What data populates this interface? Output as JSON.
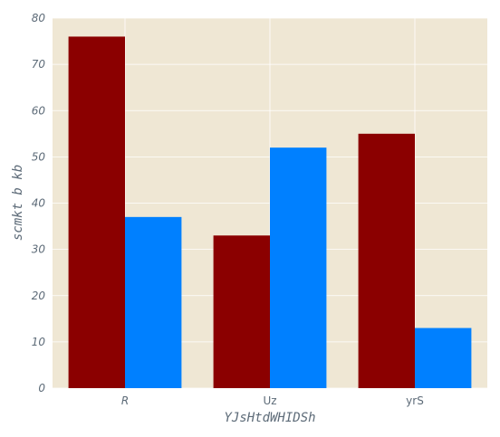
{
  "chart_data": {
    "type": "bar",
    "categories": [
      "R",
      "Uz",
      "yrS"
    ],
    "series": [
      {
        "values": [
          76,
          33,
          55
        ],
        "color": "#8b0000"
      },
      {
        "values": [
          37,
          52,
          13
        ],
        "color": "#0080ff"
      }
    ],
    "xlabel": "YJsHtdWHIDSh",
    "ylabel": "scmkt b kb",
    "ylim": [
      0,
      80
    ],
    "yticks": [
      "0",
      "10",
      "20",
      "30",
      "40",
      "50",
      "60",
      "70",
      "80"
    ],
    "grid": true,
    "background_color": "#efe7d4",
    "grid_color": "#ffffff",
    "text_color": "#5d6b78"
  }
}
